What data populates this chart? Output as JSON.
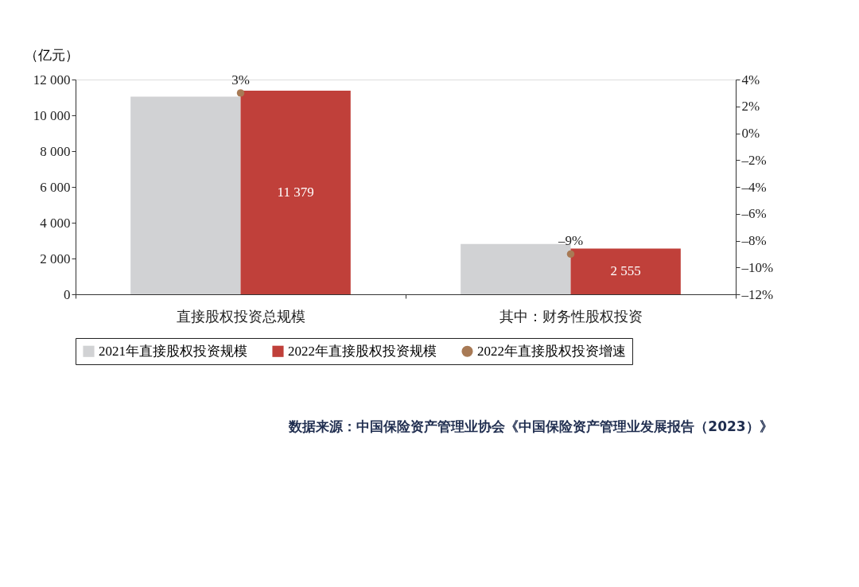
{
  "chart_data": {
    "type": "bar",
    "ylabel": "（亿元）",
    "categories": [
      "直接股权投资总规模",
      "其中：财务性股权投资"
    ],
    "series": [
      {
        "name": "2021年直接股权投资规模",
        "color": "#d1d2d4",
        "values": [
          11050,
          2810
        ]
      },
      {
        "name": "2022年直接股权投资规模",
        "color": "#c0403a",
        "values": [
          11379,
          2555
        ],
        "value_labels": [
          "11 379",
          "2 555"
        ]
      },
      {
        "name": "2022年直接股权投资增速",
        "type": "scatter",
        "axis": "y2",
        "color": "#a87a55",
        "values": [
          3,
          -9
        ],
        "value_labels": [
          "3%",
          "–9%"
        ]
      }
    ],
    "ylim": [
      0,
      12000
    ],
    "yticks": [
      0,
      {
        "value": 2000,
        "label": "2 000"
      },
      {
        "value": 4000,
        "label": "4 000"
      },
      {
        "value": 6000,
        "label": "6 000"
      },
      {
        "value": 8000,
        "label": "8 000"
      },
      {
        "value": 10000,
        "label": "10 000"
      },
      {
        "value": 12000,
        "label": "12 000"
      }
    ],
    "y2lim": [
      -12,
      4
    ],
    "y2ticks": [
      {
        "value": 4,
        "label": "4%"
      },
      {
        "value": 2,
        "label": "2%"
      },
      {
        "value": 0,
        "label": "0%"
      },
      {
        "value": -2,
        "label": "–2%"
      },
      {
        "value": -4,
        "label": "–4%"
      },
      {
        "value": -6,
        "label": "–6%"
      },
      {
        "value": -8,
        "label": "–8%"
      },
      {
        "value": -10,
        "label": "–10%"
      },
      {
        "value": -12,
        "label": "–12%"
      }
    ],
    "grid": false,
    "legend": "bottom",
    "marker": "circle",
    "annotations": [
      "数据来源：中国保险资产管理业协会《中国保险资产管理业发展报告（2023）》"
    ]
  }
}
